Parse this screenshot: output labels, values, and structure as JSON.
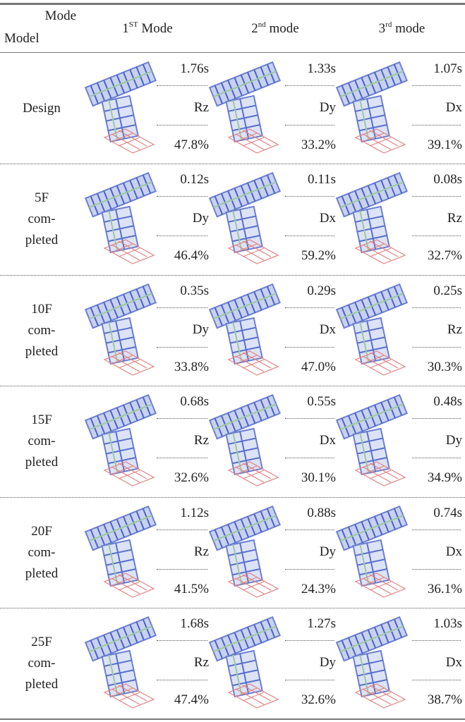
{
  "header": {
    "corner": [
      "Mode",
      "Model"
    ],
    "modes": [
      {
        "number": "1",
        "suffix": "ST",
        "word": "Mode"
      },
      {
        "number": "2",
        "suffix": "nd",
        "word": "mode"
      },
      {
        "number": "3",
        "suffix": "rd",
        "word": "mode"
      }
    ]
  },
  "table": {
    "rows": [
      {
        "model": [
          "Design"
        ],
        "modes": [
          [
            "1.76s",
            "Rz",
            "47.8%"
          ],
          [
            "1.33s",
            "Dy",
            "33.2%"
          ],
          [
            "1.07s",
            "Dx",
            "39.1%"
          ]
        ]
      },
      {
        "model": [
          "5F",
          "com-",
          "pleted"
        ],
        "modes": [
          [
            "0.12s",
            "Dy",
            "46.4%"
          ],
          [
            "0.11s",
            "Dx",
            "59.2%"
          ],
          [
            "0.08s",
            "Rz",
            "32.7%"
          ]
        ]
      },
      {
        "model": [
          "10F",
          "com-",
          "pleted"
        ],
        "modes": [
          [
            "0.35s",
            "Dy",
            "33.8%"
          ],
          [
            "0.29s",
            "Dx",
            "47.0%"
          ],
          [
            "0.25s",
            "Rz",
            "30.3%"
          ]
        ]
      },
      {
        "model": [
          "15F",
          "com-",
          "pleted"
        ],
        "modes": [
          [
            "0.68s",
            "Rz",
            "32.6%"
          ],
          [
            "0.55s",
            "Dx",
            "30.1%"
          ],
          [
            "0.48s",
            "Dy",
            "34.9%"
          ]
        ]
      },
      {
        "model": [
          "20F",
          "com-",
          "pleted"
        ],
        "modes": [
          [
            "1.12s",
            "Rz",
            "41.5%"
          ],
          [
            "0.88s",
            "Dy",
            "24.3%"
          ],
          [
            "0.74s",
            "Dx",
            "36.1%"
          ]
        ]
      },
      {
        "model": [
          "25F",
          "com-",
          "pleted"
        ],
        "modes": [
          [
            "1.68s",
            "Rz",
            "47.4%"
          ],
          [
            "1.27s",
            "Dy",
            "32.6%"
          ],
          [
            "1.03s",
            "Dx",
            "38.7%"
          ]
        ]
      }
    ]
  }
}
